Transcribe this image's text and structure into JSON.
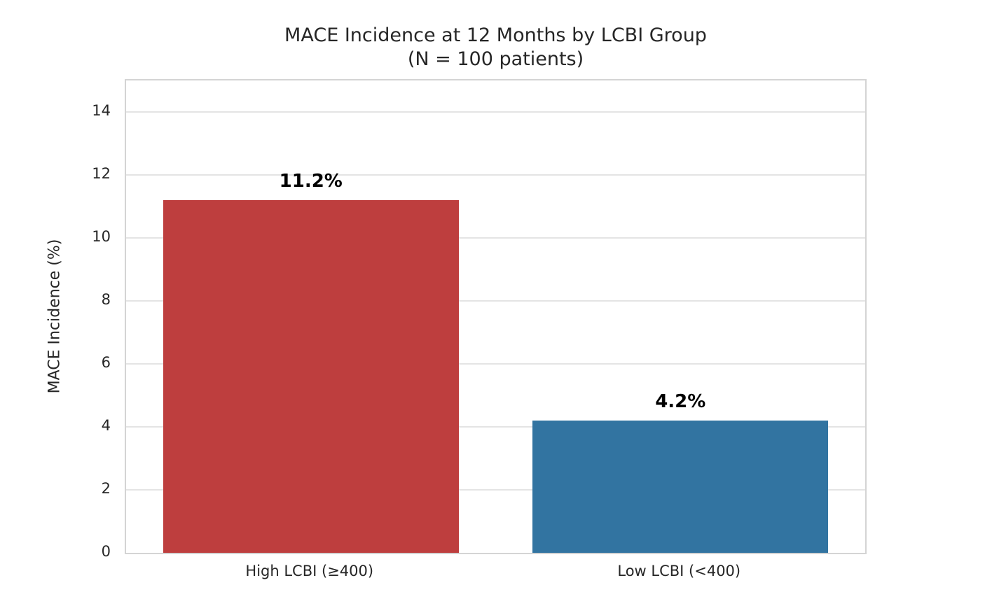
{
  "chart_data": {
    "type": "bar",
    "title": "MACE Incidence at 12 Months by LCBI Group",
    "subtitle": "(N = 100 patients)",
    "categories": [
      "High LCBI (≥400)",
      "Low LCBI (<400)"
    ],
    "values": [
      11.2,
      4.2
    ],
    "value_labels": [
      "11.2%",
      "4.2%"
    ],
    "bar_colors": [
      "#be3e3e",
      "#3274a1"
    ],
    "xlabel": "",
    "ylabel": "MACE Incidence (%)",
    "ylim": [
      0,
      15
    ],
    "yticks": [
      0,
      2,
      4,
      6,
      8,
      10,
      12,
      14
    ],
    "grid": "horizontal-only, light gray, behind bars",
    "legend": "none",
    "colors": {
      "grid_color": "#e4e4e4",
      "spine_color": "#d4d4d4",
      "text_color": "#262626",
      "value_label_color": "#000000",
      "background": "#ffffff"
    }
  }
}
